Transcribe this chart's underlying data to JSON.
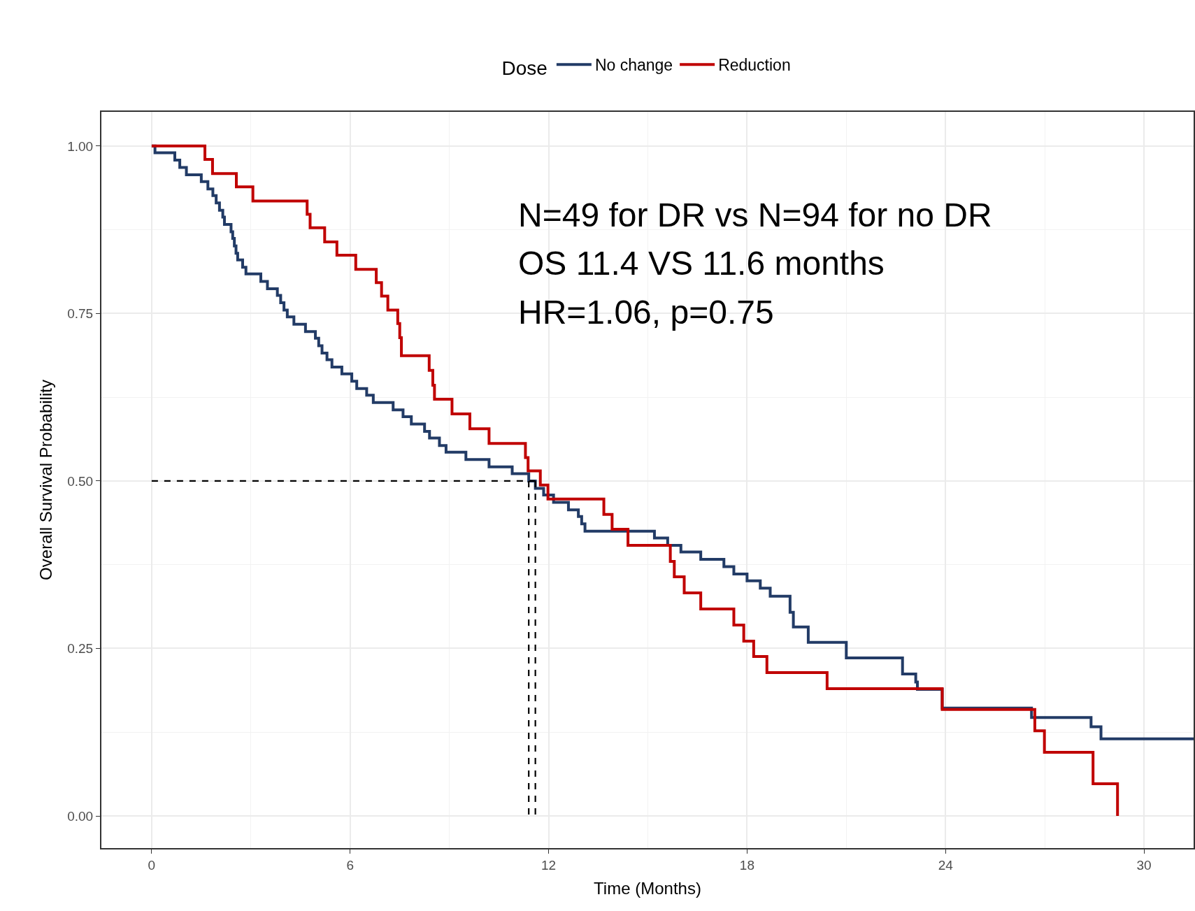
{
  "chart_data": {
    "type": "step",
    "xlabel": "Time (Months)",
    "ylabel": "Overall Survival Probability",
    "legend_title": "Dose",
    "legend": "top",
    "grid": true,
    "line_style": "solid",
    "xlim": [
      -1.52,
      31.5
    ],
    "xticks": [
      0,
      6,
      12,
      18,
      24,
      30
    ],
    "ylim": [
      -0.048,
      1.051
    ],
    "yticks": [
      {
        "value": 0,
        "label": "0.00"
      },
      {
        "value": 0.25,
        "label": "0.25"
      },
      {
        "value": 0.5,
        "label": "0.50"
      },
      {
        "value": 0.75,
        "label": "0.75"
      },
      {
        "value": 1,
        "label": "1.00"
      }
    ],
    "series": [
      {
        "name": "No change",
        "color": "#223b66",
        "x": [
          0,
          0.1,
          0.7,
          0.85,
          1.05,
          1.5,
          1.7,
          1.85,
          1.95,
          2.05,
          2.15,
          2.2,
          2.4,
          2.45,
          2.5,
          2.55,
          2.6,
          2.75,
          2.85,
          3.3,
          3.5,
          3.8,
          3.9,
          4.0,
          4.1,
          4.3,
          4.65,
          4.95,
          5.05,
          5.15,
          5.3,
          5.45,
          5.75,
          6.05,
          6.2,
          6.5,
          6.7,
          7.3,
          7.6,
          7.85,
          8.25,
          8.4,
          8.7,
          8.9,
          9.5,
          10.2,
          10.9,
          11.4,
          11.6,
          11.85,
          12.15,
          12.6,
          12.9,
          13.0,
          13.1,
          15.2,
          15.6,
          16.0,
          16.6,
          17.3,
          17.6,
          18.0,
          18.4,
          18.7,
          19.3,
          19.4,
          19.85,
          21.0,
          22.7,
          23.1,
          23.15,
          23.9,
          26.6,
          28.4,
          28.7,
          31.5
        ],
        "values": [
          1.0,
          0.99,
          0.979,
          0.968,
          0.957,
          0.947,
          0.936,
          0.926,
          0.915,
          0.904,
          0.894,
          0.883,
          0.872,
          0.862,
          0.851,
          0.84,
          0.83,
          0.819,
          0.809,
          0.798,
          0.787,
          0.777,
          0.766,
          0.755,
          0.745,
          0.734,
          0.723,
          0.713,
          0.702,
          0.691,
          0.681,
          0.67,
          0.66,
          0.649,
          0.638,
          0.628,
          0.617,
          0.606,
          0.596,
          0.585,
          0.574,
          0.564,
          0.553,
          0.543,
          0.532,
          0.521,
          0.511,
          0.5,
          0.489,
          0.479,
          0.468,
          0.457,
          0.447,
          0.436,
          0.425,
          0.415,
          0.404,
          0.394,
          0.383,
          0.372,
          0.361,
          0.351,
          0.34,
          0.328,
          0.304,
          0.282,
          0.259,
          0.236,
          0.212,
          0.2,
          0.189,
          0.161,
          0.147,
          0.133,
          0.115,
          0.115
        ]
      },
      {
        "name": "Reduction",
        "color": "#c00000",
        "x": [
          0,
          1.61,
          1.84,
          2.56,
          3.06,
          4.7,
          4.79,
          5.23,
          5.6,
          6.17,
          6.79,
          6.95,
          7.14,
          7.44,
          7.5,
          7.55,
          8.39,
          8.5,
          8.55,
          9.08,
          9.62,
          10.2,
          11.3,
          11.38,
          11.75,
          11.98,
          13.67,
          13.92,
          14.4,
          15.68,
          15.8,
          16.1,
          16.6,
          17.6,
          17.9,
          18.2,
          18.6,
          20.42,
          23.9,
          26.7,
          26.99,
          28.46,
          29.2
        ],
        "values": [
          1.0,
          0.98,
          0.959,
          0.939,
          0.918,
          0.898,
          0.878,
          0.857,
          0.837,
          0.816,
          0.796,
          0.776,
          0.755,
          0.735,
          0.714,
          0.687,
          0.665,
          0.643,
          0.622,
          0.6,
          0.578,
          0.556,
          0.535,
          0.515,
          0.494,
          0.473,
          0.45,
          0.428,
          0.404,
          0.38,
          0.357,
          0.333,
          0.309,
          0.285,
          0.261,
          0.238,
          0.214,
          0.19,
          0.159,
          0.127,
          0.095,
          0.048,
          0.0
        ]
      },
      {
        "type": "line",
        "color": "#000000",
        "line_style": "dashed",
        "x": [
          0,
          11.6
        ],
        "values": [
          0.5,
          0.5
        ]
      },
      {
        "type": "line",
        "color": "#000000",
        "line_style": "dashed",
        "x": [
          11.4,
          11.4
        ],
        "values": [
          0.5,
          0
        ]
      },
      {
        "type": "line",
        "color": "#000000",
        "line_style": "dashed",
        "x": [
          11.6,
          11.6
        ],
        "values": [
          0.5,
          0
        ]
      }
    ],
    "annotations": [
      "N=49 for DR vs N=94 for no DR",
      "OS 11.4 VS 11.6 months",
      "HR=1.06, p=0.75"
    ]
  }
}
